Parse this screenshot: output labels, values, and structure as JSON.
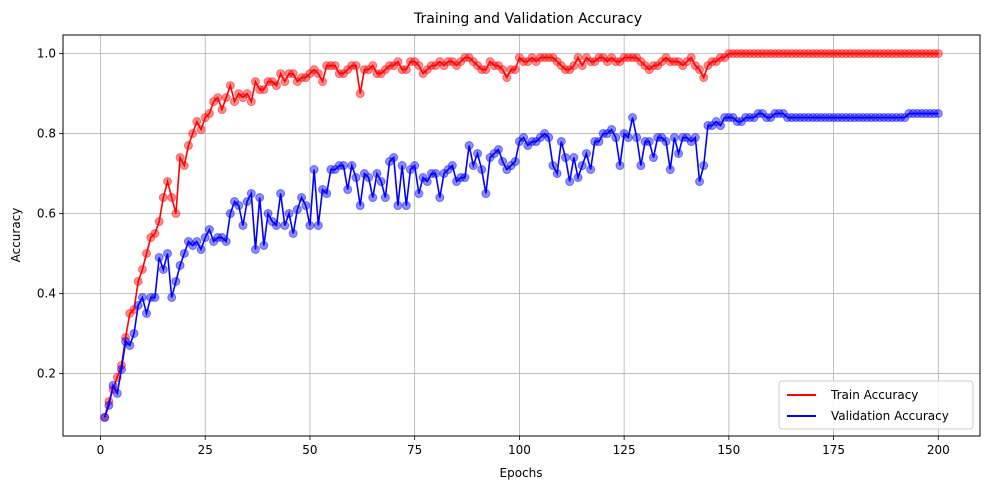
{
  "chart_data": {
    "type": "line",
    "title": "Training and Validation Accuracy",
    "xlabel": "Epochs",
    "ylabel": "Accuracy",
    "xlim": [
      -8.95,
      209.95
    ],
    "ylim": [
      0.0435,
      1.0465
    ],
    "xticks": [
      0,
      25,
      50,
      75,
      100,
      125,
      150,
      175,
      200
    ],
    "yticks": [
      0.2,
      0.4,
      0.6,
      0.8,
      1.0
    ],
    "xtick_labels": [
      "0",
      "25",
      "50",
      "75",
      "100",
      "125",
      "150",
      "175",
      "200"
    ],
    "ytick_labels": [
      "0.2",
      "0.4",
      "0.6",
      "0.8",
      "1.0"
    ],
    "grid": true,
    "legend_position": "lower-right",
    "x": [
      1,
      2,
      3,
      4,
      5,
      6,
      7,
      8,
      9,
      10,
      11,
      12,
      13,
      14,
      15,
      16,
      17,
      18,
      19,
      20,
      21,
      22,
      23,
      24,
      25,
      26,
      27,
      28,
      29,
      30,
      31,
      32,
      33,
      34,
      35,
      36,
      37,
      38,
      39,
      40,
      41,
      42,
      43,
      44,
      45,
      46,
      47,
      48,
      49,
      50,
      51,
      52,
      53,
      54,
      55,
      56,
      57,
      58,
      59,
      60,
      61,
      62,
      63,
      64,
      65,
      66,
      67,
      68,
      69,
      70,
      71,
      72,
      73,
      74,
      75,
      76,
      77,
      78,
      79,
      80,
      81,
      82,
      83,
      84,
      85,
      86,
      87,
      88,
      89,
      90,
      91,
      92,
      93,
      94,
      95,
      96,
      97,
      98,
      99,
      100,
      101,
      102,
      103,
      104,
      105,
      106,
      107,
      108,
      109,
      110,
      111,
      112,
      113,
      114,
      115,
      116,
      117,
      118,
      119,
      120,
      121,
      122,
      123,
      124,
      125,
      126,
      127,
      128,
      129,
      130,
      131,
      132,
      133,
      134,
      135,
      136,
      137,
      138,
      139,
      140,
      141,
      142,
      143,
      144,
      145,
      146,
      147,
      148,
      149,
      150,
      151,
      152,
      153,
      154,
      155,
      156,
      157,
      158,
      159,
      160,
      161,
      162,
      163,
      164,
      165,
      166,
      167,
      168,
      169,
      170,
      171,
      172,
      173,
      174,
      175,
      176,
      177,
      178,
      179,
      180,
      181,
      182,
      183,
      184,
      185,
      186,
      187,
      188,
      189,
      190,
      191,
      192,
      193,
      194,
      195,
      196,
      197,
      198,
      199,
      200
    ],
    "series": [
      {
        "name": "Train Accuracy",
        "color": "#ff0000",
        "values": [
          0.09,
          0.13,
          0.16,
          0.19,
          0.22,
          0.29,
          0.35,
          0.36,
          0.43,
          0.46,
          0.5,
          0.54,
          0.55,
          0.58,
          0.64,
          0.68,
          0.64,
          0.6,
          0.74,
          0.72,
          0.77,
          0.8,
          0.83,
          0.81,
          0.84,
          0.85,
          0.88,
          0.89,
          0.86,
          0.89,
          0.92,
          0.88,
          0.9,
          0.89,
          0.9,
          0.88,
          0.93,
          0.91,
          0.91,
          0.93,
          0.93,
          0.92,
          0.95,
          0.93,
          0.95,
          0.95,
          0.93,
          0.94,
          0.94,
          0.95,
          0.96,
          0.95,
          0.93,
          0.97,
          0.97,
          0.97,
          0.95,
          0.95,
          0.96,
          0.97,
          0.97,
          0.9,
          0.96,
          0.96,
          0.97,
          0.95,
          0.95,
          0.96,
          0.97,
          0.97,
          0.98,
          0.96,
          0.96,
          0.98,
          0.98,
          0.97,
          0.95,
          0.96,
          0.97,
          0.97,
          0.98,
          0.97,
          0.98,
          0.98,
          0.97,
          0.98,
          0.99,
          0.99,
          0.98,
          0.97,
          0.96,
          0.96,
          0.98,
          0.97,
          0.97,
          0.96,
          0.94,
          0.96,
          0.96,
          0.99,
          0.98,
          0.98,
          0.99,
          0.98,
          0.99,
          0.99,
          0.99,
          0.99,
          0.98,
          0.97,
          0.96,
          0.96,
          0.97,
          0.99,
          0.97,
          0.99,
          0.98,
          0.98,
          0.99,
          0.99,
          0.98,
          0.99,
          0.98,
          0.98,
          0.99,
          0.99,
          0.99,
          0.99,
          0.98,
          0.97,
          0.96,
          0.97,
          0.97,
          0.98,
          0.99,
          0.98,
          0.98,
          0.98,
          0.97,
          0.98,
          0.99,
          0.97,
          0.96,
          0.94,
          0.97,
          0.98,
          0.98,
          0.99,
          0.99,
          1.0,
          1.0,
          1.0,
          1.0,
          1.0,
          1.0,
          1.0,
          1.0,
          1.0,
          1.0,
          1.0,
          1.0,
          1.0,
          1.0,
          1.0,
          1.0,
          1.0,
          1.0,
          1.0,
          1.0,
          1.0,
          1.0,
          1.0,
          1.0,
          1.0,
          1.0,
          1.0,
          1.0,
          1.0,
          1.0,
          1.0,
          1.0,
          1.0,
          1.0,
          1.0,
          1.0,
          1.0,
          1.0,
          1.0,
          1.0,
          1.0,
          1.0,
          1.0,
          1.0,
          1.0,
          1.0,
          1.0,
          1.0,
          1.0,
          1.0,
          1.0
        ]
      },
      {
        "name": "Validation Accuracy",
        "color": "#0000ff",
        "values": [
          0.09,
          0.12,
          0.17,
          0.15,
          0.21,
          0.28,
          0.27,
          0.3,
          0.37,
          0.39,
          0.35,
          0.39,
          0.39,
          0.49,
          0.46,
          0.5,
          0.39,
          0.43,
          0.47,
          0.5,
          0.53,
          0.52,
          0.53,
          0.51,
          0.54,
          0.56,
          0.53,
          0.54,
          0.54,
          0.53,
          0.6,
          0.63,
          0.62,
          0.57,
          0.63,
          0.65,
          0.51,
          0.64,
          0.52,
          0.6,
          0.58,
          0.57,
          0.65,
          0.57,
          0.6,
          0.55,
          0.61,
          0.64,
          0.62,
          0.57,
          0.71,
          0.57,
          0.66,
          0.65,
          0.71,
          0.71,
          0.72,
          0.72,
          0.66,
          0.72,
          0.69,
          0.62,
          0.7,
          0.69,
          0.64,
          0.7,
          0.68,
          0.64,
          0.73,
          0.74,
          0.62,
          0.72,
          0.62,
          0.71,
          0.72,
          0.65,
          0.69,
          0.68,
          0.7,
          0.7,
          0.64,
          0.7,
          0.71,
          0.72,
          0.68,
          0.69,
          0.69,
          0.77,
          0.72,
          0.75,
          0.71,
          0.65,
          0.74,
          0.75,
          0.76,
          0.73,
          0.71,
          0.72,
          0.73,
          0.78,
          0.79,
          0.77,
          0.78,
          0.78,
          0.79,
          0.8,
          0.79,
          0.72,
          0.7,
          0.78,
          0.74,
          0.68,
          0.74,
          0.69,
          0.72,
          0.75,
          0.71,
          0.78,
          0.78,
          0.8,
          0.8,
          0.81,
          0.79,
          0.72,
          0.8,
          0.79,
          0.84,
          0.79,
          0.72,
          0.78,
          0.78,
          0.74,
          0.79,
          0.79,
          0.78,
          0.71,
          0.79,
          0.75,
          0.79,
          0.79,
          0.78,
          0.79,
          0.68,
          0.72,
          0.82,
          0.82,
          0.83,
          0.82,
          0.84,
          0.84,
          0.84,
          0.83,
          0.83,
          0.84,
          0.84,
          0.84,
          0.85,
          0.85,
          0.84,
          0.84,
          0.85,
          0.85,
          0.85,
          0.84,
          0.84,
          0.84,
          0.84,
          0.84,
          0.84,
          0.84,
          0.84,
          0.84,
          0.84,
          0.84,
          0.84,
          0.84,
          0.84,
          0.84,
          0.84,
          0.84,
          0.84,
          0.84,
          0.84,
          0.84,
          0.84,
          0.84,
          0.84,
          0.84,
          0.84,
          0.84,
          0.84,
          0.84,
          0.85,
          0.85,
          0.85,
          0.85,
          0.85,
          0.85,
          0.85,
          0.85
        ]
      }
    ]
  }
}
